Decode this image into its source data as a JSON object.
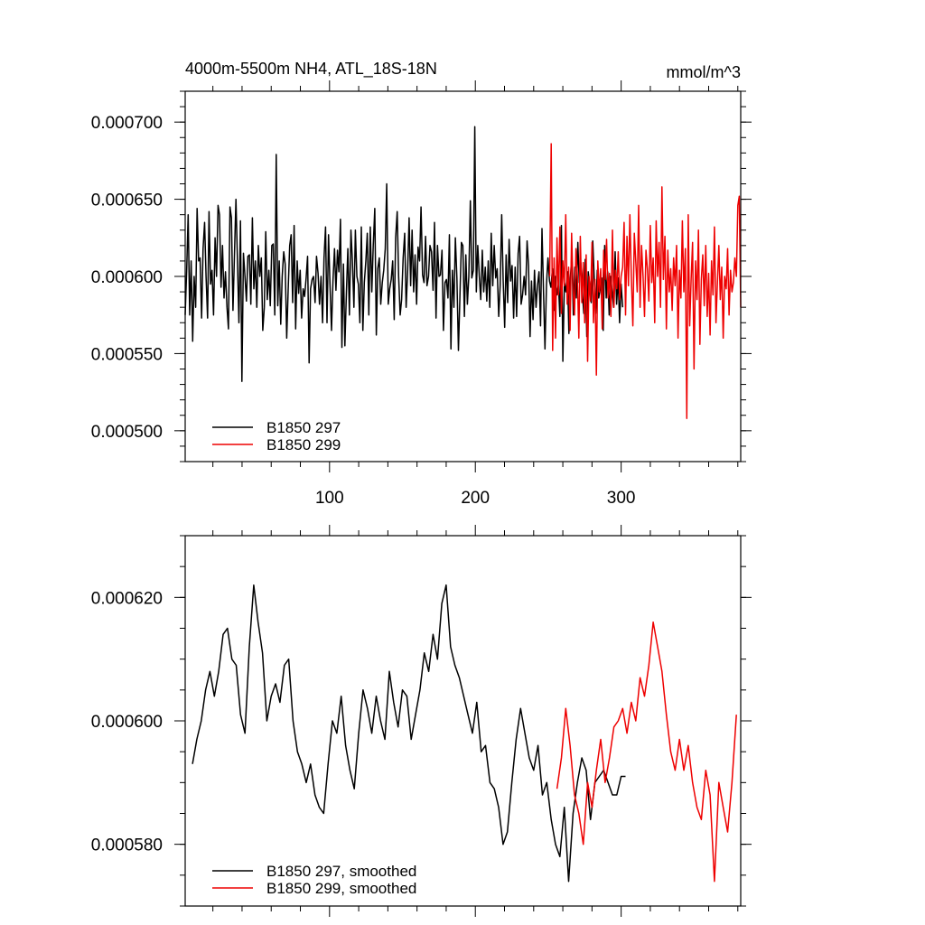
{
  "chart_data": [
    {
      "type": "line",
      "title_left": "4000m-5500m NH4, ATL_18S-18N",
      "title_right": "mmol/m^3",
      "xlim": [
        1,
        382
      ],
      "ylim": [
        0.00048,
        0.00072
      ],
      "xticks": [
        100,
        200,
        300
      ],
      "xtick_labels": [
        "100",
        "200",
        "300"
      ],
      "yticks": [
        0.0005,
        0.00055,
        0.0006,
        0.00065,
        0.0007
      ],
      "ytick_labels": [
        "0.000500",
        "0.000550",
        "0.000600",
        "0.000650",
        "0.000700"
      ],
      "legend_position": "bottom-left",
      "series": [
        {
          "name": "B1850 297",
          "color": "#000000",
          "x_start": 1,
          "x_end": 301,
          "values": [
            0.000575,
            0.000605,
            0.00064,
            0.000575,
            0.00061,
            0.000558,
            0.0006,
            0.00058,
            0.000644,
            0.00061,
            0.000612,
            0.000573,
            0.000618,
            0.000635,
            0.0006,
            0.000573,
            0.000642,
            0.000595,
            0.000604,
            0.000575,
            0.000625,
            0.0006,
            0.000646,
            0.00064,
            0.000593,
            0.00062,
            0.000586,
            0.000603,
            0.00058,
            0.000566,
            0.000645,
            0.000638,
            0.000578,
            0.000613,
            0.00065,
            0.000612,
            0.00057,
            0.000636,
            0.000532,
            0.000615,
            0.000601,
            0.000584,
            0.000613,
            0.000614,
            0.000582,
            0.000638,
            0.000592,
            0.00061,
            0.00058,
            0.00062,
            0.0006,
            0.000612,
            0.000565,
            0.00058,
            0.000629,
            0.000585,
            0.000604,
            0.000581,
            0.00062,
            0.000621,
            0.000575,
            0.000679,
            0.000581,
            0.00061,
            0.000569,
            0.0006,
            0.000616,
            0.000608,
            0.00056,
            0.000591,
            0.00062,
            0.000627,
            0.000583,
            0.000633,
            0.000566,
            0.00061,
            0.000589,
            0.000604,
            0.000573,
            0.000592,
            0.000587,
            0.000599,
            0.000613,
            0.000544,
            0.000592,
            0.000598,
            0.0006,
            0.000583,
            0.000613,
            0.000602,
            0.000582,
            0.0006,
            0.00057,
            0.000612,
            0.000632,
            0.00057,
            0.000627,
            0.000595,
            0.000565,
            0.000597,
            0.000618,
            0.000591,
            0.000617,
            0.000603,
            0.000637,
            0.000554,
            0.000608,
            0.000555,
            0.00059,
            0.000618,
            0.000575,
            0.00063,
            0.00061,
            0.00058,
            0.00063,
            0.0006,
            0.000595,
            0.00057,
            0.000632,
            0.000565,
            0.000596,
            0.00061,
            0.000628,
            0.000575,
            0.000632,
            0.00059,
            0.00062,
            0.000644,
            0.000562,
            0.000605,
            0.000612,
            0.000582,
            0.000596,
            0.000604,
            0.000618,
            0.00066,
            0.000582,
            0.000592,
            0.000598,
            0.00061,
            0.000572,
            0.000625,
            0.000642,
            0.0006,
            0.000575,
            0.000585,
            0.000612,
            0.000628,
            0.00058,
            0.000604,
            0.000638,
            0.000594,
            0.00063,
            0.00059,
            0.000614,
            0.000582,
            0.000619,
            0.00061,
            0.000645,
            0.000601,
            0.000596,
            0.000626,
            0.000594,
            0.0006,
            0.00062,
            0.000616,
            0.000591,
            0.000635,
            0.000573,
            0.00062,
            0.0006,
            0.000601,
            0.000617,
            0.000565,
            0.000596,
            0.000598,
            0.000586,
            0.000627,
            0.000553,
            0.000604,
            0.00058,
            0.000625,
            0.000599,
            0.000552,
            0.000586,
            0.000622,
            0.00062,
            0.000574,
            0.000614,
            0.000582,
            0.0006,
            0.000649,
            0.000599,
            0.000604,
            0.000697,
            0.00059,
            0.00062,
            0.0006,
            0.000585,
            0.000617,
            0.00059,
            0.000606,
            0.000584,
            0.00061,
            0.00058,
            0.000628,
            0.000594,
            0.00062,
            0.000599,
            0.000605,
            0.000574,
            0.000594,
            0.00064,
            0.000598,
            0.000567,
            0.000614,
            0.000583,
            0.000624,
            0.000597,
            0.000607,
            0.000573,
            0.000606,
            0.000574,
            0.000615,
            0.000626,
            0.000582,
            0.000588,
            0.0006,
            0.000588,
            0.000623,
            0.000607,
            0.000561,
            0.000597,
            0.000572,
            0.000604,
            0.00058,
            0.000594,
            0.000603,
            0.000568,
            0.000631,
            0.00059,
            0.000553,
            0.000595,
            0.000612,
            0.000597,
            0.000593,
            0.000605,
            0.000578,
            0.0006,
            0.000588,
            0.000595,
            0.000574,
            0.000633,
            0.000545,
            0.000596,
            0.00059,
            0.000603,
            0.000563,
            0.000599,
            0.000614,
            0.000575,
            0.000606,
            0.000586,
            0.000622,
            0.000596,
            0.000609,
            0.00059,
            0.000576,
            0.000611,
            0.000561,
            0.000603,
            0.000594,
            0.000583,
            0.000623,
            0.000599,
            0.000576,
            0.000604,
            0.000586,
            0.000592,
            0.000599,
            0.000565,
            0.00062,
            0.000586,
            0.000603,
            0.000575,
            0.0006,
            0.00059,
            0.00058,
            0.000616,
            0.000582,
            0.000599,
            0.00057,
            0.000595,
            0.00058
          ]
        },
        {
          "name": "B1850 299",
          "color": "#ee0000",
          "x_start": 251,
          "x_end": 382,
          "values": [
            0.0006,
            0.000686,
            0.000552,
            0.000612,
            0.00056,
            0.000625,
            0.000588,
            0.000632,
            0.000576,
            0.00061,
            0.000594,
            0.00064,
            0.000582,
            0.000606,
            0.000565,
            0.000628,
            0.000592,
            0.000575,
            0.000618,
            0.0006,
            0.00056,
            0.000626,
            0.000583,
            0.000609,
            0.00057,
            0.000614,
            0.000545,
            0.0006,
            0.000584,
            0.000622,
            0.00057,
            0.000598,
            0.000536,
            0.00061,
            0.00059,
            0.000605,
            0.000566,
            0.000617,
            0.000598,
            0.000624,
            0.000586,
            0.000602,
            0.000574,
            0.00063,
            0.00058,
            0.000604,
            0.000592,
            0.000616,
            0.000585,
            0.0006,
            0.000606,
            0.000635,
            0.000575,
            0.000626,
            0.000594,
            0.00064,
            0.0006,
            0.000568,
            0.000628,
            0.00061,
            0.00059,
            0.000646,
            0.00058,
            0.00062,
            0.0006,
            0.000574,
            0.000617,
            0.000605,
            0.000584,
            0.000633,
            0.000596,
            0.000612,
            0.00057,
            0.000636,
            0.0006,
            0.000622,
            0.00058,
            0.000658,
            0.000598,
            0.000626,
            0.000566,
            0.000617,
            0.00059,
            0.000605,
            0.000578,
            0.000612,
            0.000594,
            0.00062,
            0.00056,
            0.000604,
            0.000586,
            0.000636,
            0.00059,
            0.000618,
            0.000508,
            0.00064,
            0.000568,
            0.000598,
            0.000622,
            0.00054,
            0.00061,
            0.000585,
            0.00063,
            0.000556,
            0.000598,
            0.000614,
            0.000581,
            0.00062,
            0.000574,
            0.000602,
            0.000562,
            0.00061,
            0.000588,
            0.000632,
            0.00057,
            0.000596,
            0.00062,
            0.000585,
            0.000606,
            0.00056,
            0.0006,
            0.000592,
            0.000618,
            0.000575,
            0.000604,
            0.00059,
            0.000596,
            0.000612,
            0.0006,
            0.000646,
            0.000652,
            0.00058
          ]
        }
      ]
    },
    {
      "type": "line",
      "xlim": [
        1,
        382
      ],
      "ylim": [
        0.00057,
        0.00063
      ],
      "xticks": [
        100,
        200,
        300
      ],
      "yticks": [
        0.00058,
        0.0006,
        0.00062
      ],
      "ytick_labels": [
        "0.000580",
        "0.000600",
        "0.000620"
      ],
      "legend_position": "bottom-left",
      "series": [
        {
          "name": "B1850 297, smoothed",
          "color": "#000000",
          "x": [
            6,
            9,
            12,
            15,
            18,
            21,
            24,
            27,
            30,
            33,
            36,
            39,
            42,
            45,
            48,
            51,
            54,
            57,
            60,
            63,
            66,
            69,
            72,
            75,
            78,
            81,
            84,
            87,
            90,
            93,
            96,
            99,
            102,
            105,
            108,
            111,
            114,
            117,
            120,
            123,
            126,
            129,
            132,
            135,
            138,
            141,
            144,
            147,
            150,
            153,
            156,
            159,
            162,
            165,
            168,
            171,
            174,
            177,
            180,
            183,
            186,
            189,
            192,
            195,
            198,
            201,
            204,
            207,
            210,
            213,
            216,
            219,
            222,
            225,
            228,
            231,
            234,
            237,
            240,
            243,
            246,
            249,
            252,
            255,
            258,
            261,
            264,
            267,
            270,
            273,
            276,
            279,
            282,
            285,
            288,
            291,
            294,
            297,
            300,
            303
          ],
          "values": [
            0.000593,
            0.000597,
            0.0006,
            0.000605,
            0.000608,
            0.000604,
            0.000608,
            0.000614,
            0.000615,
            0.00061,
            0.000609,
            0.000601,
            0.000598,
            0.000612,
            0.000622,
            0.000616,
            0.000611,
            0.0006,
            0.000604,
            0.000606,
            0.000603,
            0.000609,
            0.00061,
            0.0006,
            0.000595,
            0.000593,
            0.00059,
            0.000593,
            0.000588,
            0.000586,
            0.000585,
            0.000593,
            0.0006,
            0.000598,
            0.000604,
            0.000596,
            0.000592,
            0.000589,
            0.000598,
            0.000605,
            0.000602,
            0.000598,
            0.000604,
            0.0006,
            0.000597,
            0.000608,
            0.000603,
            0.000599,
            0.000605,
            0.000604,
            0.000597,
            0.000601,
            0.000605,
            0.000611,
            0.000608,
            0.000614,
            0.00061,
            0.000619,
            0.000622,
            0.000612,
            0.000609,
            0.000607,
            0.000604,
            0.000601,
            0.000598,
            0.000603,
            0.000595,
            0.000596,
            0.00059,
            0.000589,
            0.000586,
            0.00058,
            0.000582,
            0.00059,
            0.000597,
            0.000602,
            0.000598,
            0.000594,
            0.000592,
            0.000596,
            0.000588,
            0.00059,
            0.000584,
            0.00058,
            0.000578,
            0.000586,
            0.000574,
            0.000585,
            0.00059,
            0.000594,
            0.000592,
            0.000584,
            0.00059,
            0.000591,
            0.000592,
            0.00059,
            0.000588,
            0.000588,
            0.000591,
            0.000591
          ]
        },
        {
          "name": "B1850 299, smoothed",
          "color": "#ee0000",
          "x": [
            256,
            259,
            262,
            265,
            268,
            271,
            274,
            277,
            280,
            283,
            286,
            289,
            292,
            295,
            298,
            301,
            304,
            307,
            310,
            313,
            316,
            319,
            322,
            325,
            328,
            331,
            334,
            337,
            340,
            343,
            346,
            349,
            352,
            355,
            358,
            361,
            364,
            367,
            370,
            373,
            376,
            379
          ],
          "values": [
            0.000589,
            0.000594,
            0.000602,
            0.000596,
            0.000588,
            0.000585,
            0.00058,
            0.00059,
            0.000586,
            0.000592,
            0.000597,
            0.00059,
            0.000594,
            0.000599,
            0.0006,
            0.000602,
            0.000598,
            0.000603,
            0.0006,
            0.000607,
            0.000604,
            0.000609,
            0.000616,
            0.000612,
            0.000608,
            0.000601,
            0.000595,
            0.000592,
            0.000597,
            0.000592,
            0.000596,
            0.00059,
            0.000586,
            0.000584,
            0.000592,
            0.000588,
            0.000574,
            0.00059,
            0.000586,
            0.000582,
            0.00059,
            0.000601
          ]
        }
      ]
    }
  ]
}
